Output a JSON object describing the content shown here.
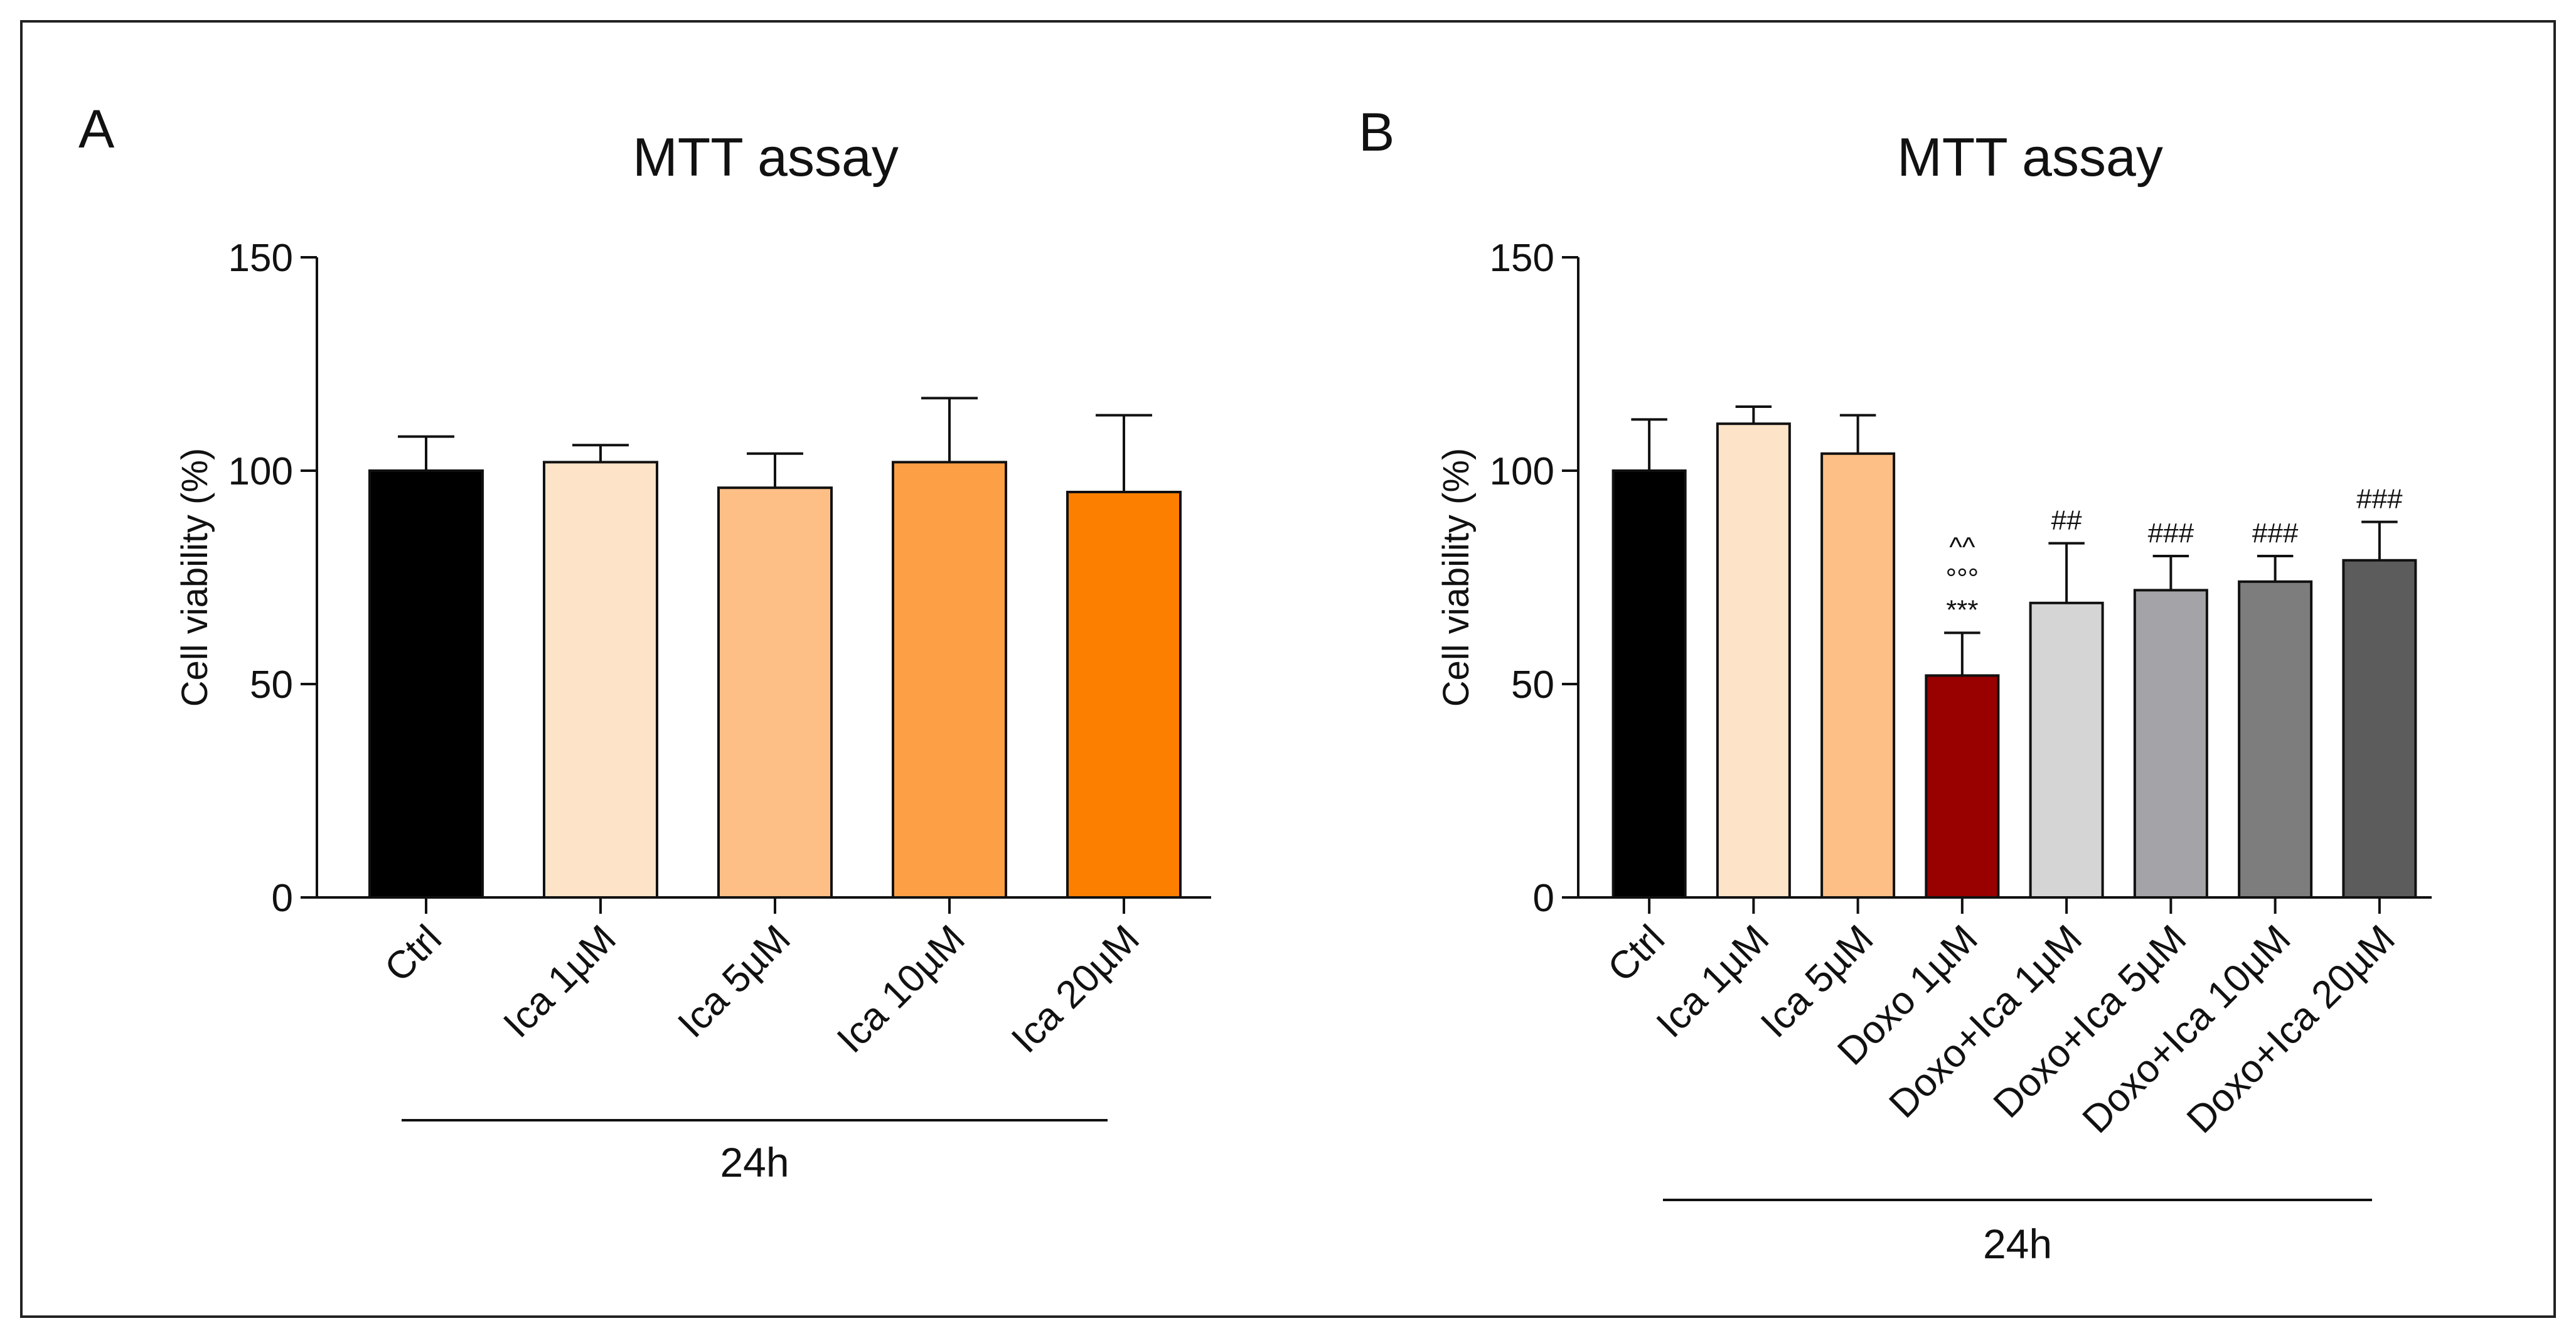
{
  "chart_data": [
    {
      "panel_label": "A",
      "type": "bar",
      "title": "MTT assay",
      "ylabel": "Cell viability (%)",
      "xlabel": "",
      "ylim": [
        0,
        150
      ],
      "yticks": [
        0,
        50,
        100,
        150
      ],
      "grid": false,
      "group_label": "24h",
      "categories": [
        "Ctrl",
        "Ica 1µM",
        "Ica 5µM",
        "Ica 10µM",
        "Ica 20µM"
      ],
      "values": [
        100,
        102,
        96,
        102,
        95
      ],
      "errors": [
        8,
        4,
        8,
        15,
        18
      ],
      "colors": [
        "#000000",
        "#fde3c8",
        "#fdbf86",
        "#fda045",
        "#fd7f00"
      ],
      "annotations": [
        [],
        [],
        [],
        [],
        []
      ]
    },
    {
      "panel_label": "B",
      "type": "bar",
      "title": "MTT assay",
      "ylabel": "Cell viability (%)",
      "xlabel": "",
      "ylim": [
        0,
        150
      ],
      "yticks": [
        0,
        50,
        100,
        150
      ],
      "grid": false,
      "group_label": "24h",
      "categories": [
        "Ctrl",
        "Ica 1µM",
        "Ica 5µM",
        "Doxo 1µM",
        "Doxo+Ica 1µM",
        "Doxo+Ica 5µM",
        "Doxo+Ica 10µM",
        "Doxo+Ica 20µM"
      ],
      "values": [
        100,
        111,
        104,
        52,
        69,
        72,
        74,
        79
      ],
      "errors": [
        12,
        4,
        9,
        10,
        14,
        8,
        6,
        9
      ],
      "colors": [
        "#000000",
        "#fde3c8",
        "#fdbf86",
        "#990000",
        "#d5d5d5",
        "#a4a4a8",
        "#7d7d7d",
        "#5c5c5c"
      ],
      "annotations": [
        [],
        [],
        [],
        [
          "^^",
          "°°°",
          "***"
        ],
        [
          "##"
        ],
        [
          "###"
        ],
        [
          "###"
        ],
        [
          "###"
        ]
      ]
    }
  ]
}
